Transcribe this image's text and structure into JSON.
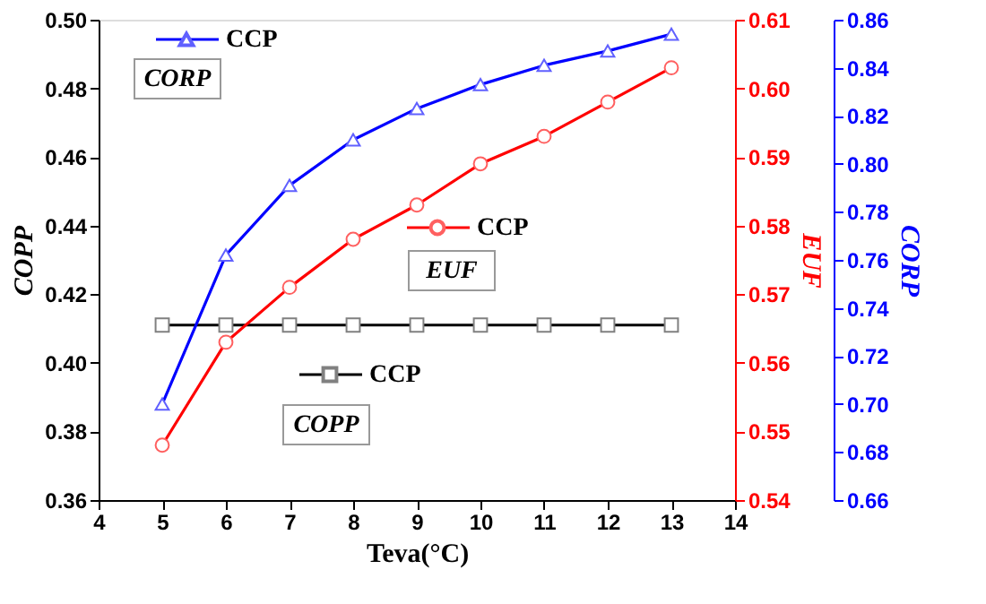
{
  "chart_data": {
    "type": "line",
    "xlabel": "Teva(°C)",
    "ylabel": "COPP",
    "y2label": "EUF",
    "y3label": "CORP",
    "x": [
      5,
      6,
      7,
      8,
      9,
      10,
      11,
      12,
      13
    ],
    "xlim": [
      4,
      14
    ],
    "xticks": [
      4,
      5,
      6,
      7,
      8,
      9,
      10,
      11,
      12,
      13,
      14
    ],
    "ylim": [
      0.36,
      0.5
    ],
    "yticks": [
      {
        "value": 0.36,
        "label": "0.36"
      },
      {
        "value": 0.38,
        "label": "0.38"
      },
      {
        "value": 0.4,
        "label": "0.40"
      },
      {
        "value": 0.42,
        "label": "0.42"
      },
      {
        "value": 0.44,
        "label": "0.44"
      },
      {
        "value": 0.46,
        "label": "0.46"
      },
      {
        "value": 0.48,
        "label": "0.48"
      },
      {
        "value": 0.5,
        "label": "0.50"
      }
    ],
    "y2lim": [
      0.54,
      0.61
    ],
    "y2ticks": [
      {
        "value": 0.54,
        "label": "0.54"
      },
      {
        "value": 0.55,
        "label": "0.55"
      },
      {
        "value": 0.56,
        "label": "0.56"
      },
      {
        "value": 0.57,
        "label": "0.57"
      },
      {
        "value": 0.58,
        "label": "0.58"
      },
      {
        "value": 0.59,
        "label": "0.59"
      },
      {
        "value": 0.6,
        "label": "0.60"
      },
      {
        "value": 0.61,
        "label": "0.61"
      }
    ],
    "y3lim": [
      0.66,
      0.86
    ],
    "y3ticks": [
      {
        "value": 0.66,
        "label": "0.66"
      },
      {
        "value": 0.68,
        "label": "0.68"
      },
      {
        "value": 0.7,
        "label": "0.70"
      },
      {
        "value": 0.72,
        "label": "0.72"
      },
      {
        "value": 0.74,
        "label": "0.74"
      },
      {
        "value": 0.76,
        "label": "0.76"
      },
      {
        "value": 0.78,
        "label": "0.78"
      },
      {
        "value": 0.8,
        "label": "0.80"
      },
      {
        "value": 0.82,
        "label": "0.82"
      },
      {
        "value": 0.84,
        "label": "0.84"
      },
      {
        "value": 0.86,
        "label": "0.86"
      }
    ],
    "series": [
      {
        "name": "CCP",
        "color": "#000000",
        "marker": "square",
        "axis": "y",
        "values": [
          0.411,
          0.411,
          0.411,
          0.411,
          0.411,
          0.411,
          0.411,
          0.411,
          0.411
        ]
      },
      {
        "name": "CCP",
        "color": "#ff0000",
        "marker": "circle",
        "axis": "y2",
        "values": [
          0.548,
          0.563,
          0.571,
          0.578,
          0.583,
          0.589,
          0.593,
          0.598,
          0.603
        ]
      },
      {
        "name": "CCP",
        "color": "#0000ff",
        "marker": "triangle",
        "axis": "y3",
        "values": [
          0.7,
          0.762,
          0.791,
          0.81,
          0.823,
          0.833,
          0.841,
          0.847,
          0.854
        ]
      }
    ],
    "annotations": [
      "COPP",
      "EUF",
      "CORP"
    ],
    "legend": "top left",
    "grid": false
  }
}
